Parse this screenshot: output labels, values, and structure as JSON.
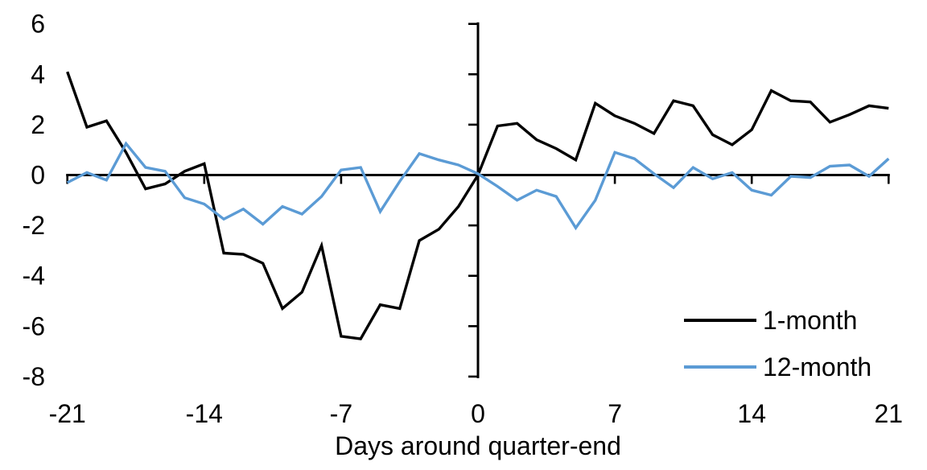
{
  "chart_data": {
    "type": "line",
    "title": "",
    "xlabel": "Days around quarter-end",
    "ylabel": "",
    "xlim": [
      -21,
      21
    ],
    "ylim": [
      -8,
      6
    ],
    "x_ticks": [
      -21,
      -14,
      -7,
      0,
      7,
      14,
      21
    ],
    "y_ticks": [
      -8,
      -6,
      -4,
      -2,
      0,
      2,
      4,
      6
    ],
    "grid": false,
    "legend_position": "lower-right",
    "background_color": "#ffffff",
    "axis_color": "#000000",
    "x": [
      -21,
      -20,
      -19,
      -18,
      -17,
      -16,
      -15,
      -14,
      -13,
      -12,
      -11,
      -10,
      -9,
      -8,
      -7,
      -6,
      -5,
      -4,
      -3,
      -2,
      -1,
      0,
      1,
      2,
      3,
      4,
      5,
      6,
      7,
      8,
      9,
      10,
      11,
      12,
      13,
      14,
      15,
      16,
      17,
      18,
      19,
      20,
      21
    ],
    "series": [
      {
        "name": "1-month",
        "color": "#000000",
        "values": [
          4.1,
          1.9,
          2.15,
          0.9,
          -0.55,
          -0.35,
          0.15,
          0.45,
          -3.1,
          -3.15,
          -3.5,
          -5.3,
          -4.65,
          -2.8,
          -6.4,
          -6.5,
          -5.15,
          -5.3,
          -2.6,
          -2.15,
          -1.25,
          0.0,
          1.95,
          2.05,
          1.4,
          1.05,
          0.6,
          2.85,
          2.35,
          2.05,
          1.65,
          2.95,
          2.75,
          1.6,
          1.2,
          1.8,
          3.35,
          2.95,
          2.9,
          2.1,
          2.4,
          2.75,
          2.65
        ]
      },
      {
        "name": "12-month",
        "color": "#5B9BD5",
        "values": [
          -0.3,
          0.1,
          -0.2,
          1.25,
          0.3,
          0.15,
          -0.9,
          -1.15,
          -1.75,
          -1.35,
          -1.95,
          -1.25,
          -1.55,
          -0.85,
          0.2,
          0.3,
          -1.45,
          -0.25,
          0.85,
          0.6,
          0.4,
          0.05,
          -0.45,
          -1.0,
          -0.6,
          -0.85,
          -2.1,
          -1.0,
          0.9,
          0.65,
          0.05,
          -0.5,
          0.3,
          -0.15,
          0.1,
          -0.6,
          -0.8,
          -0.05,
          -0.1,
          0.35,
          0.4,
          -0.05,
          0.65
        ]
      }
    ]
  }
}
